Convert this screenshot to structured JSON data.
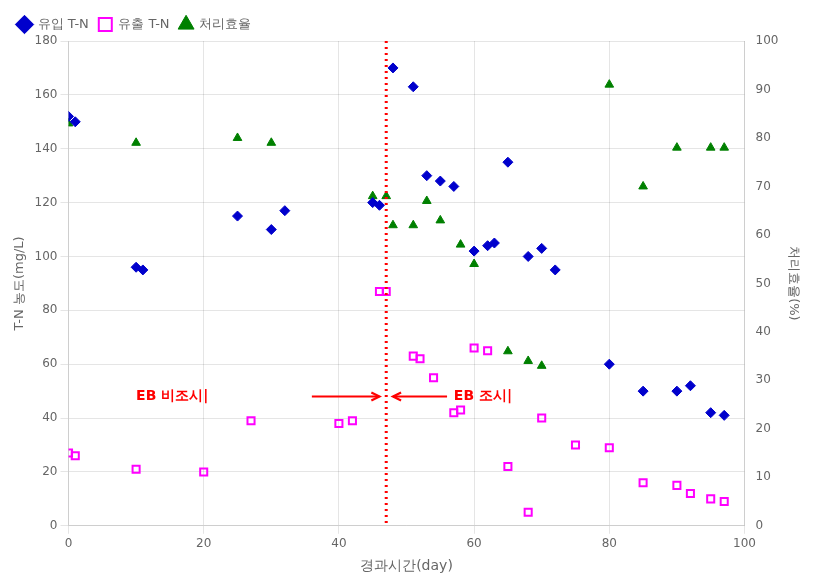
{
  "chart_data": {
    "type": "scatter",
    "xlabel": "경과시간(day)",
    "ylabel": "T-N 농도(mg/L)",
    "y2label": "처리효율(%)",
    "xlim": [
      0,
      100
    ],
    "ylim": [
      0,
      180
    ],
    "y2lim": [
      0,
      100
    ],
    "xticks": [
      0,
      20,
      40,
      60,
      80,
      100
    ],
    "yticks": [
      0,
      20,
      40,
      60,
      80,
      100,
      120,
      140,
      160,
      180
    ],
    "y2ticks": [
      0,
      10,
      20,
      30,
      40,
      50,
      60,
      70,
      80,
      90,
      100
    ],
    "grid": true,
    "legend": "upper left",
    "series": [
      {
        "name": "유입 T-N",
        "color": "#0000CC",
        "marker": "diamond",
        "x": [
          0,
          1,
          10,
          11,
          25,
          30,
          32,
          45,
          46,
          48,
          51,
          53,
          55,
          57,
          60,
          62,
          63,
          65,
          68,
          70,
          72,
          80,
          85,
          90,
          92,
          95,
          97
        ],
        "values": [
          152,
          150,
          96,
          95,
          115,
          110,
          117,
          120,
          119,
          170,
          163,
          130,
          128,
          126,
          102,
          104,
          105,
          135,
          100,
          103,
          95,
          60,
          50,
          50,
          52,
          42,
          41
        ]
      },
      {
        "name": "유출 T-N",
        "color": "#FF00FF",
        "marker": "square",
        "x": [
          0,
          1,
          10,
          20,
          27,
          40,
          42,
          46,
          47,
          51,
          52,
          54,
          57,
          58,
          60,
          62,
          65,
          68,
          70,
          75,
          80,
          85,
          90,
          92,
          95,
          97
        ],
        "values": [
          27,
          26,
          21,
          20,
          39,
          38,
          39,
          87,
          87,
          63,
          62,
          55,
          42,
          43,
          66,
          65,
          22,
          5,
          40,
          30,
          29,
          16,
          15,
          12,
          10,
          9
        ]
      },
      {
        "name": "처리효율",
        "color": "#008000",
        "marker": "triangle",
        "axis": "y2",
        "x": [
          0,
          10,
          25,
          30,
          45,
          47,
          48,
          51,
          53,
          55,
          58,
          60,
          65,
          68,
          70,
          80,
          85,
          90,
          95,
          97
        ],
        "values": [
          83,
          79,
          80,
          79,
          68,
          68,
          62,
          62,
          67,
          63,
          58,
          54,
          36,
          34,
          33,
          91,
          70,
          78,
          78,
          78
        ]
      }
    ],
    "vline": {
      "x": 47,
      "color": "#FF0000",
      "line_style": "dotted"
    },
    "annotations": [
      {
        "text": "EB 비조시|",
        "x": 10,
        "y": 48,
        "color": "#FF0000",
        "arrow_from": [
          36,
          48
        ],
        "arrow_to": [
          46,
          48
        ]
      },
      {
        "text": "EB 조시|",
        "x": 57,
        "y": 48,
        "color": "#FF0000",
        "arrow_from": [
          56,
          48
        ],
        "arrow_to": [
          48,
          48
        ]
      }
    ]
  }
}
